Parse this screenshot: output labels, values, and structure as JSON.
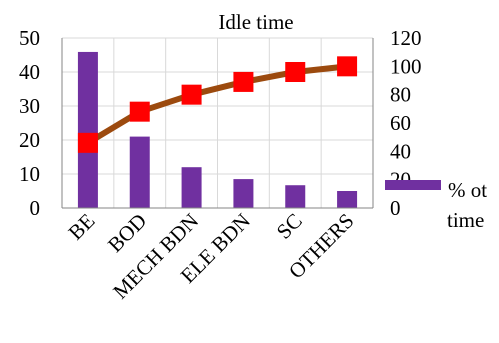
{
  "chart_data": {
    "type": "bar",
    "title": "Idle time",
    "categories": [
      "BE",
      "BOD",
      "MECH BDN",
      "ELE BDN",
      "SC",
      "OTHERS"
    ],
    "series": [
      {
        "name": "% of time",
        "type": "bar",
        "axis": "left",
        "color": "#7030A0",
        "values": [
          45.9,
          21.0,
          12.0,
          8.5,
          6.7,
          5.0
        ]
      },
      {
        "name": "",
        "type": "line",
        "axis": "right",
        "line_color": "#9C4A0E",
        "marker_color": "#FF0000",
        "values": [
          46,
          68,
          80,
          89,
          96,
          100
        ]
      }
    ],
    "ylim": [
      0,
      50
    ],
    "y2lim": [
      0,
      120
    ],
    "yticks": [
      "0",
      "10",
      "20",
      "30",
      "40",
      "50"
    ],
    "y2ticks": [
      "0",
      "20",
      "40",
      "60",
      "80",
      "100",
      "120"
    ],
    "legend": {
      "position": "right",
      "label_line1": "% ot",
      "label_line2": "time"
    },
    "grid": true
  }
}
